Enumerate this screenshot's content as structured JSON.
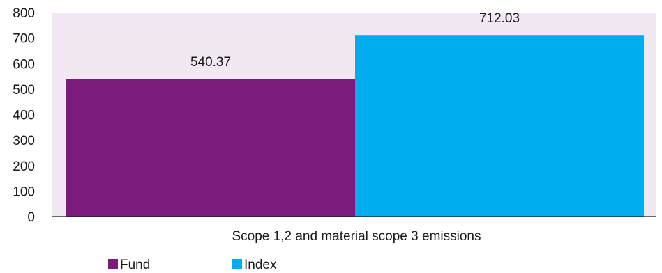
{
  "chart_data": {
    "type": "bar",
    "categories": [
      "Scope 1,2 and material scope 3 emissions"
    ],
    "series": [
      {
        "name": "Fund",
        "values": [
          540.37
        ],
        "color": "#7b1c7c"
      },
      {
        "name": "Index",
        "values": [
          712.03
        ],
        "color": "#00aeef"
      }
    ],
    "data_labels": [
      "540.37",
      "712.03"
    ],
    "yticks": [
      "0",
      "100",
      "200",
      "300",
      "400",
      "500",
      "600",
      "700",
      "800"
    ],
    "ylim": [
      0,
      800
    ],
    "plot_background": "#f2e8f2",
    "grid": false,
    "legend_position": "bottom-left"
  }
}
